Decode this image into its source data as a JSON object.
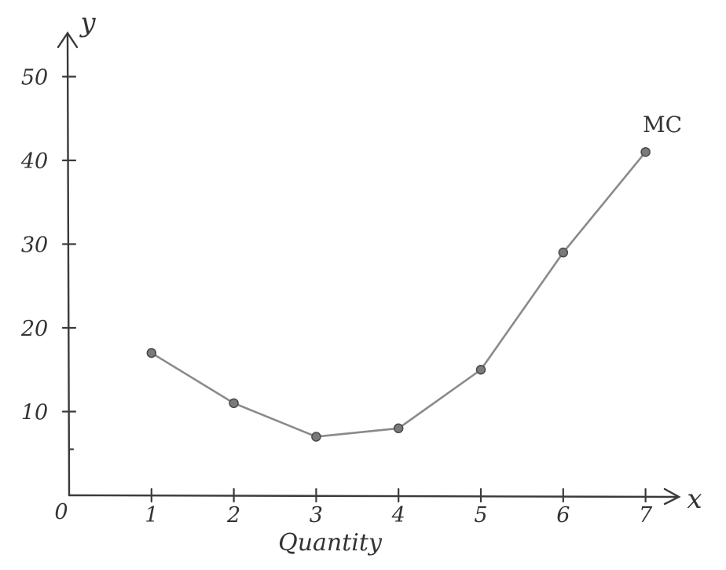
{
  "chart_data": {
    "type": "line",
    "title": "",
    "xlabel": "Quantity",
    "ylabel": "",
    "axis_letters": {
      "x": "x",
      "y": "y"
    },
    "origin_label": "0",
    "x": [
      1,
      2,
      3,
      4,
      5,
      6,
      7
    ],
    "x_tick_labels": [
      "1",
      "2",
      "3",
      "4",
      "5",
      "6",
      "7"
    ],
    "y_ticks": [
      10,
      20,
      30,
      40,
      50
    ],
    "y_tick_labels": [
      "10",
      "20",
      "30",
      "40",
      "50"
    ],
    "xlim": [
      0,
      7
    ],
    "ylim": [
      0,
      50
    ],
    "grid": false,
    "series": [
      {
        "name": "MC",
        "values": [
          17,
          11,
          7,
          8,
          15,
          29,
          41
        ]
      }
    ],
    "colors": {
      "line": "#8a8a8a",
      "axis": "#3a3a3a",
      "points": "#7a7a7a"
    }
  }
}
